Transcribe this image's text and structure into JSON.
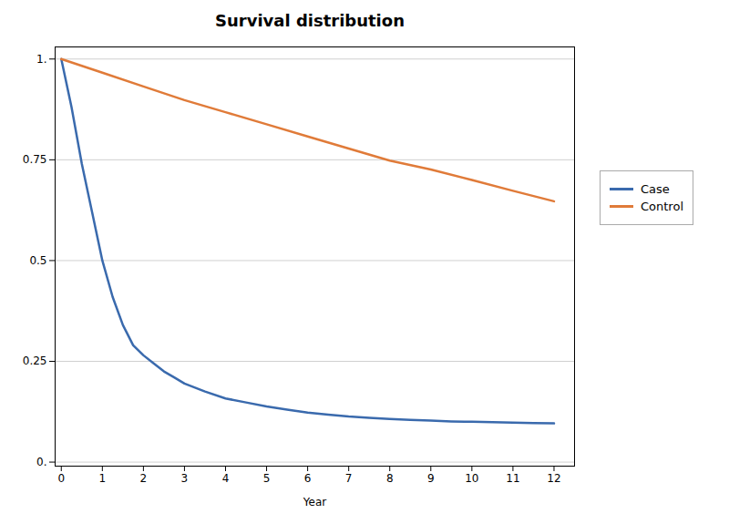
{
  "chart_data": {
    "type": "line",
    "title": "Survival distribution",
    "xlabel": "Year",
    "series": [
      {
        "name": "Case",
        "color": "#3a6aad",
        "x": [
          0,
          0.25,
          0.5,
          0.75,
          1.0,
          1.25,
          1.5,
          1.75,
          2.0,
          2.25,
          2.5,
          2.75,
          3.0,
          3.5,
          4.0,
          4.5,
          5.0,
          5.5,
          6.0,
          6.5,
          7.0,
          7.5,
          8.0,
          8.5,
          9.0,
          9.5,
          10.0,
          10.5,
          11.0,
          11.5,
          12.0
        ],
        "values": [
          1.0,
          0.88,
          0.74,
          0.62,
          0.5,
          0.41,
          0.34,
          0.29,
          0.265,
          0.245,
          0.225,
          0.21,
          0.195,
          0.175,
          0.158,
          0.148,
          0.138,
          0.13,
          0.123,
          0.118,
          0.113,
          0.11,
          0.107,
          0.105,
          0.103,
          0.101,
          0.1,
          0.099,
          0.098,
          0.097,
          0.096
        ]
      },
      {
        "name": "Control",
        "color": "#e07b39",
        "x": [
          0,
          1,
          2,
          3,
          4,
          5,
          6,
          7,
          8,
          9,
          10,
          11,
          12
        ],
        "values": [
          1.0,
          0.966,
          0.932,
          0.898,
          0.868,
          0.838,
          0.808,
          0.778,
          0.748,
          0.726,
          0.7,
          0.673,
          0.647
        ]
      }
    ],
    "xlim": [
      -0.15,
      12.5
    ],
    "ylim": [
      -0.01,
      1.03
    ],
    "xticks": [
      0,
      1,
      2,
      3,
      4,
      5,
      6,
      7,
      8,
      9,
      10,
      11,
      12
    ],
    "yticks": [
      {
        "value": 0.0,
        "label": "0."
      },
      0.25,
      0.5,
      0.75,
      {
        "value": 1.0,
        "label": "1."
      }
    ],
    "grid": true,
    "legend": "right"
  }
}
